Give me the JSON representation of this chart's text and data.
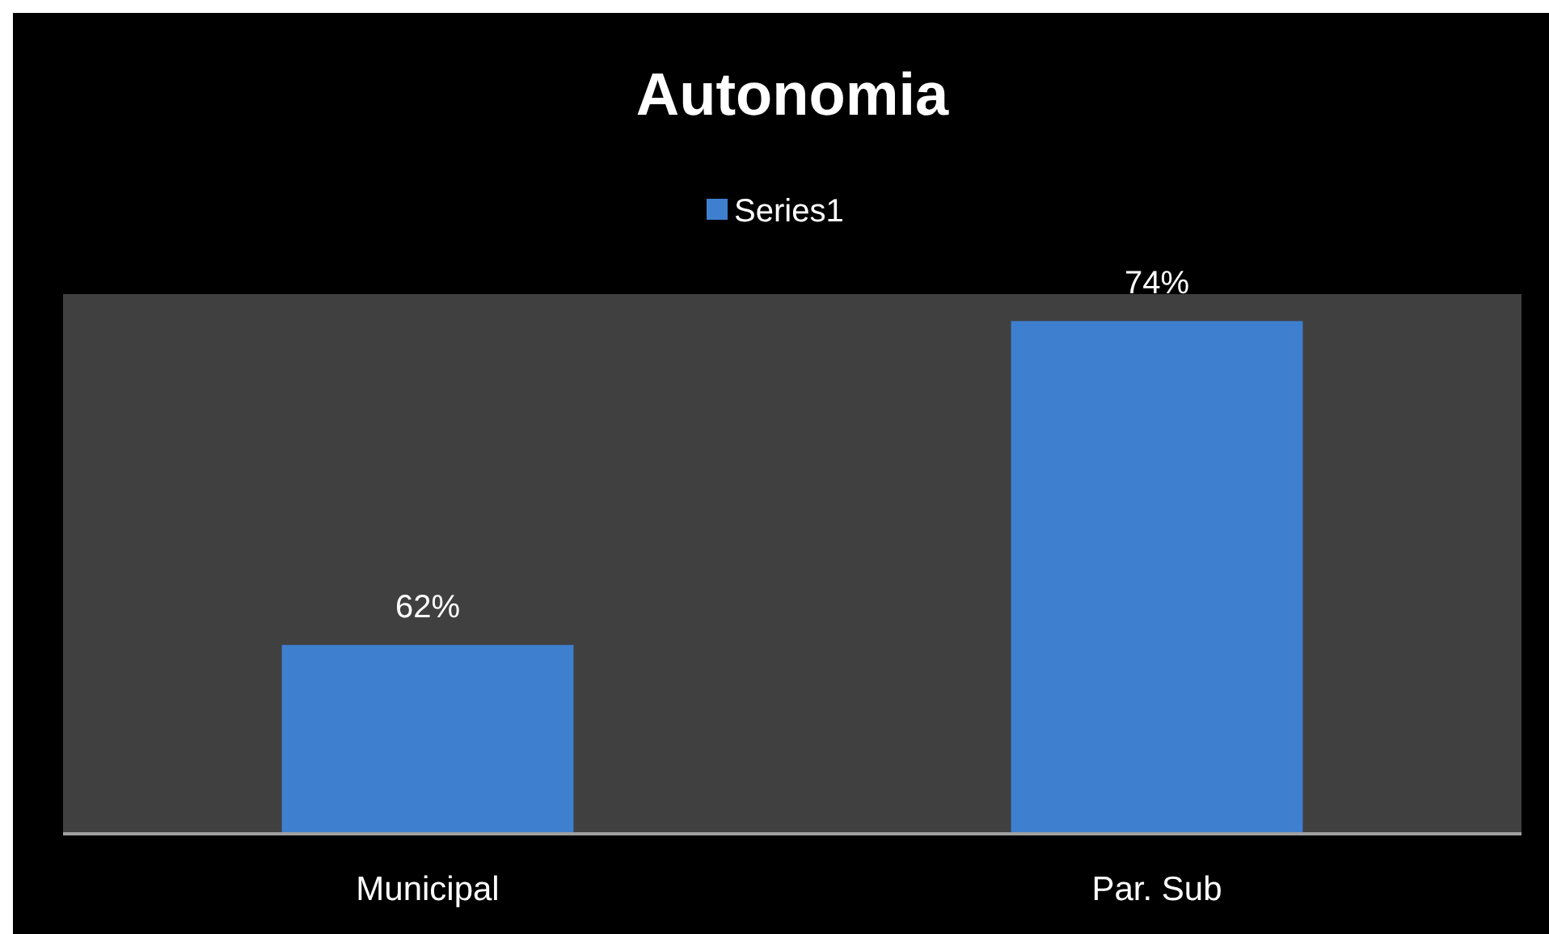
{
  "chart_data": {
    "type": "bar",
    "title": "Autonomia",
    "categories": [
      "Municipal",
      "Par. Sub"
    ],
    "series": [
      {
        "name": "Series1",
        "color": "#3f7fcf",
        "values": [
          62,
          74
        ],
        "value_labels": [
          "62%",
          "74%"
        ]
      }
    ],
    "ylim": [
      55,
      75
    ],
    "tick_labels": "x",
    "legend": "top"
  }
}
